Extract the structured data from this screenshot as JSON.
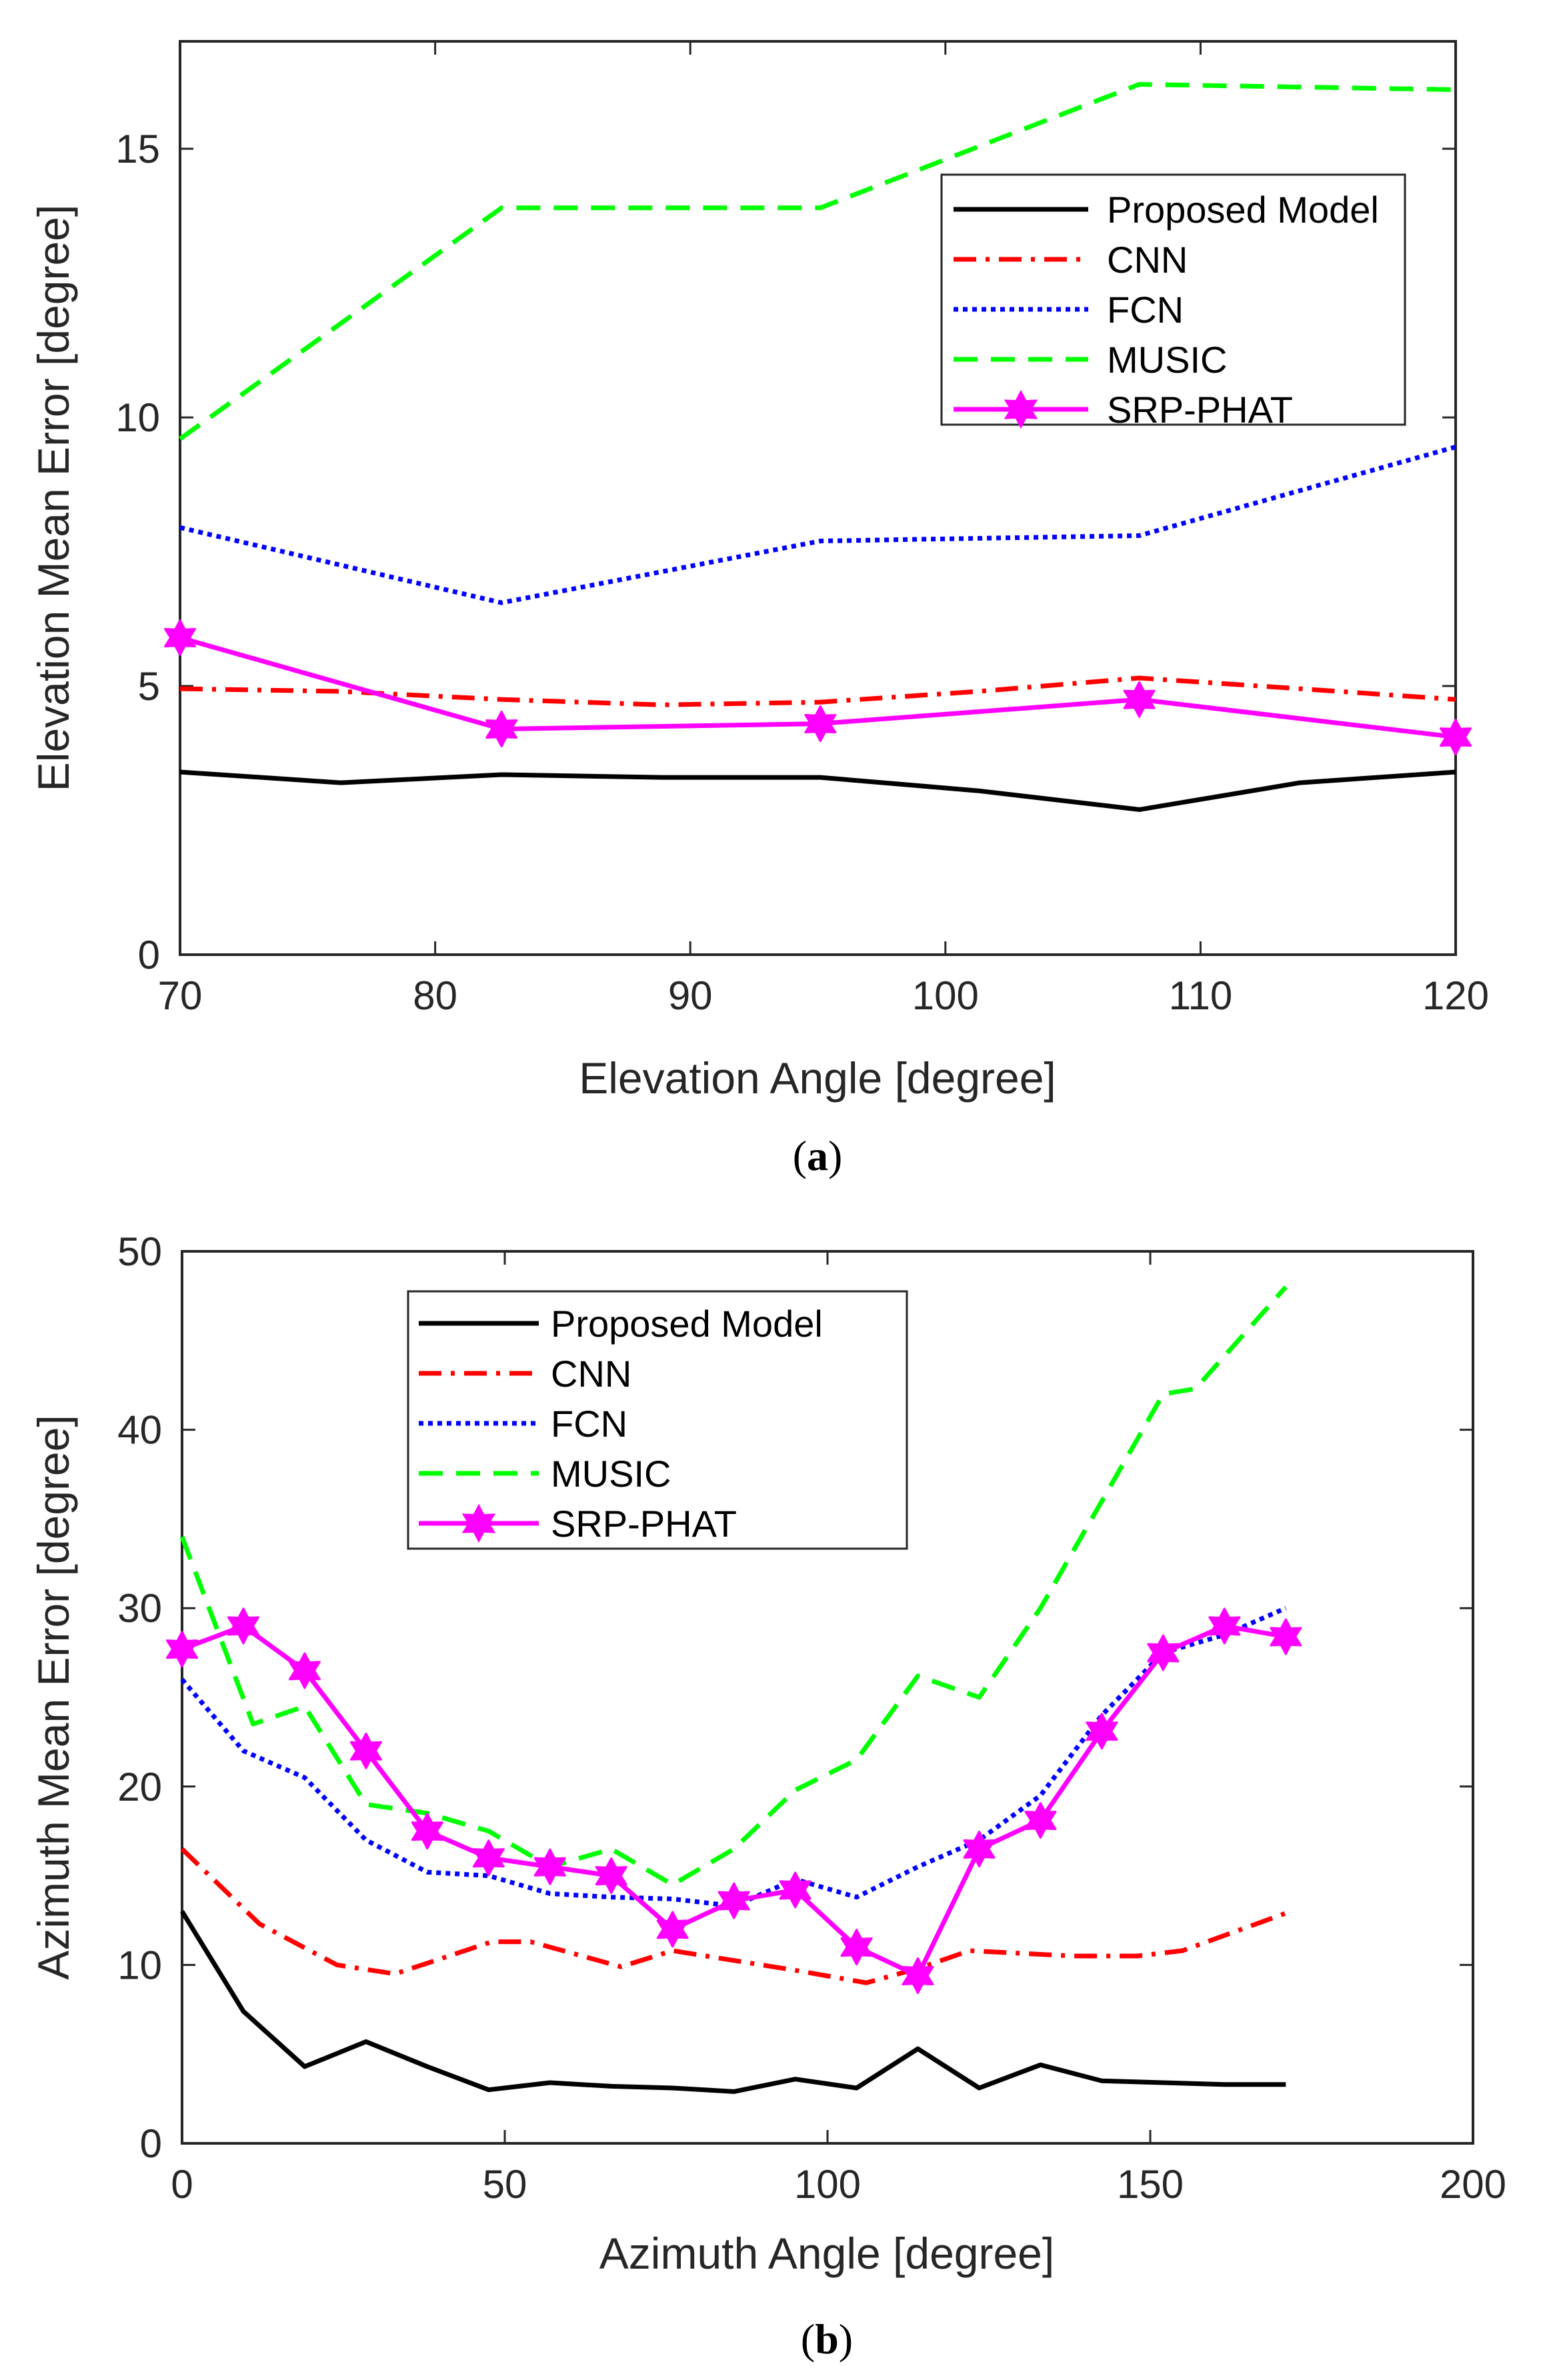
{
  "figure": {
    "captions": [
      "(a)",
      "(b)"
    ],
    "caption_letters": [
      "a",
      "b"
    ]
  },
  "chart_data": [
    {
      "type": "line",
      "panel": "a",
      "xlabel": "Elevation Angle [degree]",
      "ylabel": "Elevation Mean Error [degree]",
      "xlim": [
        70,
        120
      ],
      "ylim": [
        0,
        17
      ],
      "xticks": [
        70,
        80,
        90,
        100,
        110,
        120
      ],
      "yticks": [
        0,
        5,
        10,
        15
      ],
      "grid": false,
      "legend_position": "top-right",
      "series": [
        {
          "name": "Proposed Model",
          "color": "#000000",
          "style": "solid",
          "marker": "none",
          "x": [
            70,
            76.3,
            82.6,
            88.9,
            95.1,
            101.3,
            107.6,
            113.9,
            120
          ],
          "y": [
            3.4,
            3.2,
            3.35,
            3.3,
            3.3,
            3.05,
            2.7,
            3.2,
            3.4
          ]
        },
        {
          "name": "CNN",
          "color": "#ff0000",
          "style": "dashdot",
          "marker": "none",
          "x": [
            70,
            76.3,
            82.6,
            88.9,
            95.1,
            101.3,
            107.6,
            113.9,
            120
          ],
          "y": [
            4.95,
            4.9,
            4.75,
            4.65,
            4.7,
            4.9,
            5.15,
            4.95,
            4.75
          ]
        },
        {
          "name": "FCN",
          "color": "#0000ff",
          "style": "dotted",
          "marker": "none",
          "x": [
            70,
            82.6,
            95.1,
            107.6,
            120
          ],
          "y": [
            7.95,
            6.55,
            7.7,
            7.8,
            9.45
          ]
        },
        {
          "name": "MUSIC",
          "color": "#00ff00",
          "style": "dashed",
          "marker": "none",
          "x": [
            70,
            82.6,
            95.1,
            107.6,
            120
          ],
          "y": [
            9.6,
            13.9,
            13.9,
            16.2,
            16.1
          ]
        },
        {
          "name": "SRP-PHAT",
          "color": "#ff00ff",
          "style": "solid",
          "marker": "star",
          "x": [
            70,
            82.6,
            95.1,
            107.6,
            120
          ],
          "y": [
            5.9,
            4.2,
            4.3,
            4.75,
            4.05
          ]
        }
      ]
    },
    {
      "type": "line",
      "panel": "b",
      "xlabel": "Azimuth Angle [degree]",
      "ylabel": "Azimuth Mean Error [degree]",
      "xlim": [
        0,
        200
      ],
      "ylim": [
        0,
        50
      ],
      "xticks": [
        0,
        50,
        100,
        150,
        200
      ],
      "yticks": [
        0,
        10,
        20,
        30,
        40,
        50
      ],
      "grid": false,
      "legend_position": "top-left",
      "series": [
        {
          "name": "Proposed Model",
          "color": "#000000",
          "style": "solid",
          "marker": "none",
          "x": [
            0,
            9.5,
            19,
            28.5,
            38,
            47.5,
            57,
            66.5,
            76,
            85.5,
            95,
            104.5,
            114,
            123.5,
            133,
            142.5,
            152,
            161.5,
            171
          ],
          "y": [
            13,
            7.4,
            4.3,
            5.7,
            4.3,
            3,
            3.4,
            3.2,
            3.1,
            2.9,
            3.6,
            3.1,
            5.3,
            3.1,
            4.4,
            3.5,
            3.4,
            3.3,
            3.3
          ]
        },
        {
          "name": "CNN",
          "color": "#ff0000",
          "style": "dashdot",
          "marker": "none",
          "x": [
            0,
            12,
            24,
            33,
            48,
            54,
            68,
            76,
            95,
            106,
            114,
            122,
            138,
            148,
            155,
            171
          ],
          "y": [
            16.5,
            12.3,
            10,
            9.5,
            11.3,
            11.3,
            9.9,
            10.8,
            9.7,
            9,
            9.8,
            10.8,
            10.5,
            10.5,
            10.8,
            12.9
          ]
        },
        {
          "name": "FCN",
          "color": "#0000ff",
          "style": "dotted",
          "marker": "none",
          "x": [
            0,
            9.5,
            19,
            28.5,
            38,
            47.5,
            57,
            66.5,
            76,
            85.5,
            95,
            104.5,
            114,
            123.5,
            133,
            142.5,
            152,
            161.5,
            171
          ],
          "y": [
            26,
            22,
            20.5,
            17,
            15.2,
            15,
            14,
            13.8,
            13.7,
            13.3,
            14.8,
            13.8,
            15.5,
            17,
            19.5,
            24,
            27.5,
            28.5,
            30
          ]
        },
        {
          "name": "MUSIC",
          "color": "#00ff00",
          "style": "dashed",
          "marker": "none",
          "x": [
            0,
            11,
            19,
            28.5,
            38,
            47.5,
            57,
            66.5,
            76,
            85.5,
            95,
            104.5,
            114,
            123.5,
            133,
            142.5,
            152,
            157,
            171
          ],
          "y": [
            34,
            23.5,
            24.5,
            19,
            18.5,
            17.5,
            15.5,
            16.5,
            14.5,
            16.5,
            19.8,
            21.5,
            26.2,
            25,
            30,
            36,
            42,
            42.3,
            48
          ]
        },
        {
          "name": "SRP-PHAT",
          "color": "#ff00ff",
          "style": "solid",
          "marker": "star",
          "x": [
            0,
            9.5,
            19,
            28.5,
            38,
            47.5,
            57,
            66.5,
            76,
            85.5,
            95,
            104.5,
            114,
            123.5,
            133,
            142.5,
            152,
            161.5,
            171
          ],
          "y": [
            27.7,
            29,
            26.5,
            22,
            17.5,
            16,
            15.5,
            15,
            12,
            13.6,
            14.2,
            11,
            9.4,
            16.5,
            18.1,
            23.1,
            27.5,
            29,
            28.4
          ]
        }
      ]
    }
  ]
}
